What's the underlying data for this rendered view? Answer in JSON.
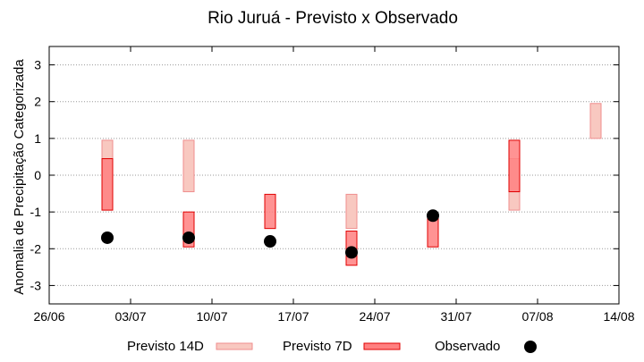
{
  "chart_data": {
    "type": "floating-bar",
    "title": "Rio Juruá - Previsto x Observado",
    "xlabel": "",
    "ylabel": "Anomalia de Precipitação Categorizada",
    "x_range": [
      "26/06",
      "14/08"
    ],
    "ylim": [
      -3.5,
      3.5
    ],
    "y_ticks": [
      3,
      2,
      1,
      0,
      -1,
      -2,
      -3
    ],
    "x_ticks": [
      "26/06",
      "03/07",
      "10/07",
      "17/07",
      "24/07",
      "31/07",
      "07/08",
      "14/08"
    ],
    "grid": true,
    "legend_position": "bottom",
    "series": [
      {
        "name": "Previsto 14D",
        "color": "#f8c8c0",
        "edge": "#ef8e8e",
        "ranges": [
          {
            "date": "01/07",
            "low": -0.95,
            "high": 0.95
          },
          {
            "date": "08/07",
            "low": -0.45,
            "high": 0.95
          },
          {
            "date": "22/07",
            "low": -1.45,
            "high": -0.52
          },
          {
            "date": "05/08",
            "low": -0.95,
            "high": 0.45
          },
          {
            "date": "12/08",
            "low": 1.0,
            "high": 1.95
          }
        ]
      },
      {
        "name": "Previsto 7D",
        "color": "#ff8080",
        "edge": "#e00000",
        "ranges": [
          {
            "date": "01/07",
            "low": -0.95,
            "high": 0.45
          },
          {
            "date": "08/07",
            "low": -1.95,
            "high": -1.0
          },
          {
            "date": "15/07",
            "low": -1.45,
            "high": -0.52
          },
          {
            "date": "22/07",
            "low": -2.45,
            "high": -1.52
          },
          {
            "date": "29/07",
            "low": -1.95,
            "high": -1.1
          },
          {
            "date": "05/08",
            "low": -0.45,
            "high": 0.95
          }
        ]
      },
      {
        "name": "Observado",
        "color": "#000000",
        "points": [
          {
            "date": "01/07",
            "value": -1.7
          },
          {
            "date": "08/07",
            "value": -1.7
          },
          {
            "date": "15/07",
            "value": -1.8
          },
          {
            "date": "22/07",
            "value": -2.1
          },
          {
            "date": "29/07",
            "value": -1.1
          }
        ]
      }
    ]
  }
}
